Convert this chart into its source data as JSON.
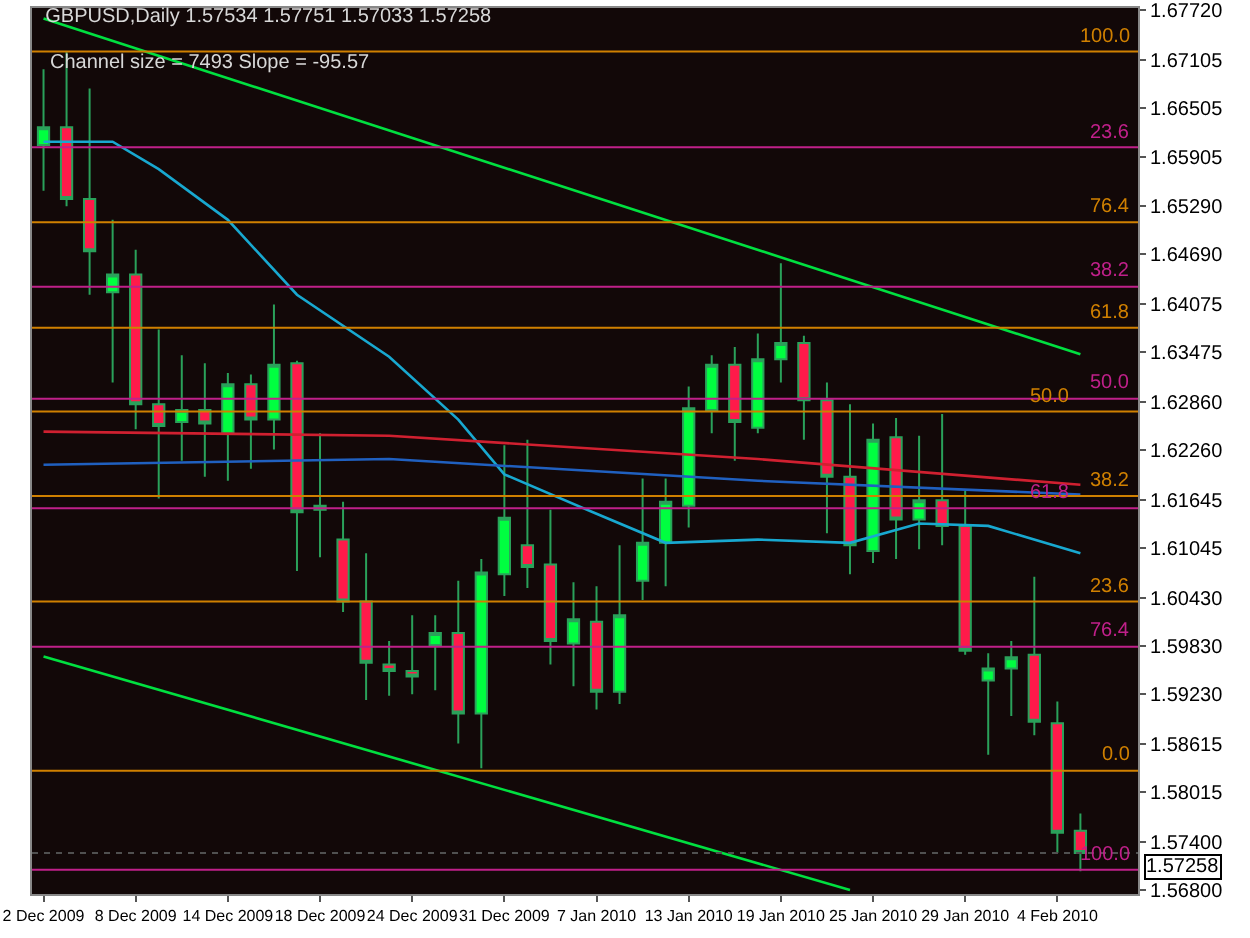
{
  "chart_data": {
    "type": "candlestick",
    "title": "GBPUSD,Daily 1.57534 1.57751 1.57033 1.57258",
    "categories": [
      "2 Dec 2009",
      null,
      null,
      null,
      "8 Dec 2009",
      null,
      null,
      null,
      "14 Dec 2009",
      null,
      null,
      null,
      "18 Dec 2009",
      null,
      null,
      null,
      "24 Dec 2009",
      null,
      null,
      null,
      "31 Dec 2009",
      null,
      null,
      null,
      "7 Jan 2010",
      null,
      null,
      null,
      "13 Jan 2010",
      null,
      null,
      null,
      "19 Jan 2010",
      null,
      null,
      null,
      "25 Jan 2010",
      null,
      null,
      null,
      "29 Jan 2010",
      null,
      null,
      null,
      "4 Feb 2010",
      null
    ],
    "ohlc": [
      [
        1.6605,
        1.6699,
        1.6548,
        1.6627
      ],
      [
        1.6627,
        1.6721,
        1.6529,
        1.6538
      ],
      [
        1.6538,
        1.6675,
        1.6419,
        1.6473
      ],
      [
        1.6422,
        1.6512,
        1.631,
        1.6444
      ],
      [
        1.6444,
        1.6475,
        1.6252,
        1.6283
      ],
      [
        1.6283,
        1.6376,
        1.6166,
        1.6256
      ],
      [
        1.6261,
        1.6344,
        1.6213,
        1.6276
      ],
      [
        1.6276,
        1.6334,
        1.6193,
        1.6259
      ],
      [
        1.6247,
        1.6322,
        1.6188,
        1.6308
      ],
      [
        1.6308,
        1.632,
        1.6203,
        1.6264
      ],
      [
        1.6264,
        1.6407,
        1.6227,
        1.6332
      ],
      [
        1.6334,
        1.6337,
        1.6076,
        1.6149
      ],
      [
        1.6152,
        1.6247,
        1.6093,
        1.6157
      ],
      [
        1.6115,
        1.6162,
        1.6025,
        1.6038
      ],
      [
        1.6038,
        1.6098,
        1.5916,
        1.5962
      ],
      [
        1.596,
        1.5989,
        1.5921,
        1.5952
      ],
      [
        1.5952,
        1.6021,
        1.5923,
        1.5945
      ],
      [
        1.5984,
        1.6021,
        1.5928,
        1.5999
      ],
      [
        1.5999,
        1.6064,
        1.5862,
        1.5899
      ],
      [
        1.5899,
        1.6091,
        1.5831,
        1.6074
      ],
      [
        1.6072,
        1.6232,
        1.6045,
        1.6142
      ],
      [
        1.6108,
        1.6239,
        1.6055,
        1.6081
      ],
      [
        1.6084,
        1.6152,
        1.596,
        1.5989
      ],
      [
        1.5986,
        1.6062,
        1.5933,
        1.6016
      ],
      [
        1.6013,
        1.6057,
        1.5904,
        1.5926
      ],
      [
        1.5926,
        1.6108,
        1.5911,
        1.6021
      ],
      [
        1.6064,
        1.6191,
        1.604,
        1.6111
      ],
      [
        1.6111,
        1.6191,
        1.6057,
        1.6162
      ],
      [
        1.6157,
        1.6305,
        1.613,
        1.6278
      ],
      [
        1.6276,
        1.6344,
        1.6247,
        1.6332
      ],
      [
        1.6332,
        1.6354,
        1.6213,
        1.6261
      ],
      [
        1.6254,
        1.6371,
        1.6247,
        1.6339
      ],
      [
        1.6339,
        1.6458,
        1.631,
        1.6359
      ],
      [
        1.6359,
        1.6368,
        1.6239,
        1.6288
      ],
      [
        1.6288,
        1.631,
        1.6123,
        1.6193
      ],
      [
        1.6193,
        1.6283,
        1.6072,
        1.6108
      ],
      [
        1.6101,
        1.6259,
        1.6086,
        1.6239
      ],
      [
        1.6242,
        1.6266,
        1.6091,
        1.614
      ],
      [
        1.614,
        1.6244,
        1.6103,
        1.6164
      ],
      [
        1.6164,
        1.6271,
        1.6108,
        1.6132
      ],
      [
        1.6132,
        1.6176,
        1.5972,
        1.5977
      ],
      [
        1.594,
        1.5974,
        1.5848,
        1.5955
      ],
      [
        1.5955,
        1.5989,
        1.5896,
        1.5969
      ],
      [
        1.5972,
        1.6069,
        1.5872,
        1.5889
      ],
      [
        1.5887,
        1.5914,
        1.5726,
        1.5751
      ],
      [
        1.57534,
        1.57751,
        1.57033,
        1.57258
      ]
    ],
    "series": [
      {
        "type": "line",
        "color": "#00e040",
        "values": [
          1.6762,
          null,
          null,
          null,
          null,
          null,
          null,
          null,
          null,
          null,
          null,
          null,
          null,
          null,
          null,
          null,
          null,
          null,
          null,
          null,
          null,
          null,
          null,
          null,
          null,
          null,
          null,
          null,
          null,
          null,
          null,
          null,
          null,
          null,
          null,
          null,
          null,
          null,
          null,
          null,
          null,
          null,
          null,
          null,
          null,
          1.6345
        ]
      },
      {
        "type": "line",
        "color": "#00e040",
        "values": [
          1.597,
          null,
          null,
          null,
          null,
          null,
          null,
          null,
          null,
          null,
          null,
          null,
          null,
          null,
          null,
          null,
          null,
          null,
          null,
          null,
          null,
          null,
          null,
          null,
          null,
          null,
          null,
          null,
          null,
          null,
          null,
          null,
          null,
          null,
          null,
          1.568,
          null,
          null,
          null,
          null,
          null,
          null,
          null,
          null,
          null,
          null
        ]
      },
      {
        "type": "line",
        "color": "#18a8d0",
        "values": [
          1.6609,
          null,
          null,
          1.6609,
          null,
          1.6575,
          null,
          null,
          1.6512,
          null,
          null,
          1.6419,
          null,
          null,
          null,
          1.6342,
          null,
          null,
          1.6264,
          null,
          1.6196,
          null,
          null,
          null,
          1.6147,
          null,
          null,
          1.6111,
          null,
          null,
          null,
          1.6115,
          null,
          null,
          null,
          1.6111,
          null,
          null,
          1.6135,
          null,
          null,
          1.6132,
          null,
          null,
          null,
          1.6098
        ]
      },
      {
        "type": "line",
        "color": "#d02030",
        "values": [
          1.6249,
          null,
          null,
          null,
          null,
          null,
          null,
          null,
          null,
          null,
          null,
          null,
          null,
          null,
          null,
          1.6244,
          null,
          null,
          null,
          null,
          null,
          null,
          null,
          null,
          null,
          null,
          null,
          null,
          null,
          null,
          null,
          1.6215,
          null,
          null,
          null,
          null,
          null,
          null,
          null,
          null,
          null,
          null,
          null,
          null,
          null,
          1.6183
        ]
      },
      {
        "type": "line",
        "color": "#2060c0",
        "values": [
          1.6208,
          null,
          null,
          null,
          null,
          null,
          null,
          null,
          null,
          null,
          null,
          null,
          null,
          null,
          null,
          1.6215,
          null,
          null,
          null,
          null,
          null,
          null,
          null,
          null,
          null,
          null,
          null,
          null,
          null,
          null,
          null,
          1.6188,
          null,
          null,
          null,
          null,
          null,
          null,
          null,
          null,
          null,
          null,
          null,
          null,
          null,
          1.6171
        ]
      }
    ],
    "ylim": [
      1.5675,
      1.6775
    ],
    "yticks": [
      {
        "value": 1.6772,
        "label": "1.67720"
      },
      {
        "value": 1.67105,
        "label": "1.67105"
      },
      {
        "value": 1.66505,
        "label": "1.66505"
      },
      {
        "value": 1.65905,
        "label": "1.65905"
      },
      {
        "value": 1.6529,
        "label": "1.65290"
      },
      {
        "value": 1.6469,
        "label": "1.64690"
      },
      {
        "value": 1.64075,
        "label": "1.64075"
      },
      {
        "value": 1.63475,
        "label": "1.63475"
      },
      {
        "value": 1.6286,
        "label": "1.62860"
      },
      {
        "value": 1.6226,
        "label": "1.62260"
      },
      {
        "value": 1.61645,
        "label": "1.61645"
      },
      {
        "value": 1.61045,
        "label": "1.61045"
      },
      {
        "value": 1.6043,
        "label": "1.60430"
      },
      {
        "value": 1.5983,
        "label": "1.59830"
      },
      {
        "value": 1.5923,
        "label": "1.59230"
      },
      {
        "value": 1.58615,
        "label": "1.58615"
      },
      {
        "value": 1.58015,
        "label": "1.58015"
      },
      {
        "value": 1.574,
        "label": "1.57400"
      },
      {
        "value": 1.568,
        "label": "1.56800"
      }
    ],
    "ref_lines": [
      {
        "axis": "y",
        "value": 1.6721,
        "color": "#d08000"
      },
      {
        "axis": "y",
        "value": 1.6602,
        "color": "#c0208a"
      },
      {
        "axis": "y",
        "value": 1.6509,
        "color": "#d08000"
      },
      {
        "axis": "y",
        "value": 1.6429,
        "color": "#c0208a"
      },
      {
        "axis": "y",
        "value": 1.6378,
        "color": "#d08000"
      },
      {
        "axis": "y",
        "value": 1.629,
        "color": "#c0208a"
      },
      {
        "axis": "y",
        "value": 1.6274,
        "color": "#d08000"
      },
      {
        "axis": "y",
        "value": 1.6169,
        "color": "#d08000"
      },
      {
        "axis": "y",
        "value": 1.6154,
        "color": "#c0208a"
      },
      {
        "axis": "y",
        "value": 1.6038,
        "color": "#d08000"
      },
      {
        "axis": "y",
        "value": 1.5982,
        "color": "#c0208a"
      },
      {
        "axis": "y",
        "value": 1.5828,
        "color": "#d08000"
      },
      {
        "axis": "y",
        "value": 1.5705,
        "color": "#c0208a"
      },
      {
        "axis": "y",
        "value": 1.57258,
        "label": "1.57258",
        "color": "#505050",
        "line_style": "dotted"
      }
    ],
    "annotations": [
      "Channel size = 7493 Slope = -95.57",
      {
        "text": "100.0",
        "y": 1.6721
      },
      {
        "text": "23.6",
        "y": 1.6602
      },
      {
        "text": "76.4",
        "y": 1.6509
      },
      {
        "text": "38.2",
        "y": 1.6429
      },
      {
        "text": "61.8",
        "y": 1.6378
      },
      {
        "text": "50.0",
        "y": 1.629
      },
      {
        "text": "50.0",
        "y": 1.6274
      },
      {
        "text": "38.2",
        "y": 1.6169
      },
      {
        "text": "61.8",
        "y": 1.6154
      },
      {
        "text": "23.6",
        "y": 1.6038
      },
      {
        "text": "76.4",
        "y": 1.5982
      },
      {
        "text": "0.0",
        "y": 1.5828
      },
      {
        "text": "100.0",
        "y": 1.5705
      }
    ],
    "grid": false
  }
}
